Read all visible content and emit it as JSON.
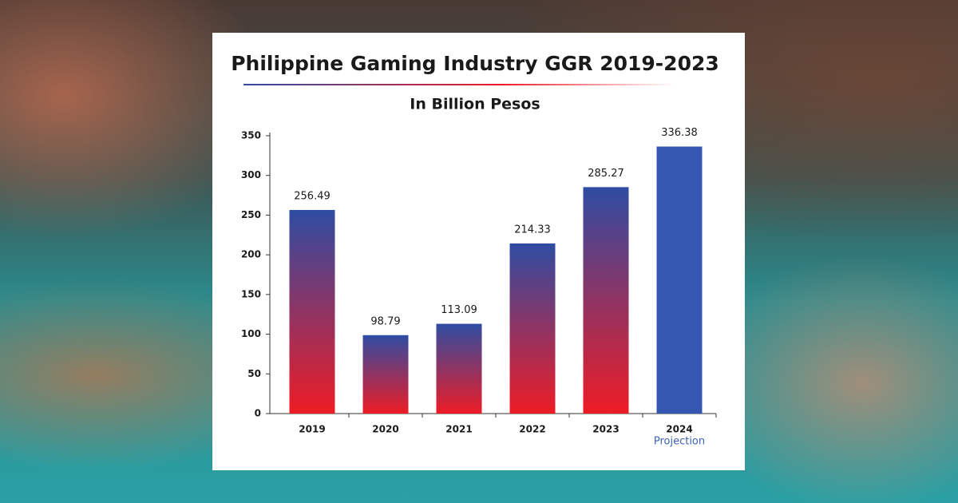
{
  "chart_data": {
    "type": "bar",
    "title": "Philippine Gaming Industry GGR 2019-2023",
    "subtitle": "In Billion Pesos",
    "categories": [
      "2019",
      "2020",
      "2021",
      "2022",
      "2023",
      "2024"
    ],
    "values": [
      256.49,
      98.79,
      113.09,
      214.33,
      285.27,
      336.38
    ],
    "ylim": [
      0,
      350
    ],
    "yticks": [
      0,
      50,
      100,
      150,
      200,
      250,
      300,
      350
    ],
    "gradient": [
      "#2f4ca2",
      "#ee1c25"
    ],
    "projection_color": "#3657b1",
    "annotation": {
      "text": "Projection",
      "category_index": 5,
      "color": "#3b63b5"
    }
  }
}
